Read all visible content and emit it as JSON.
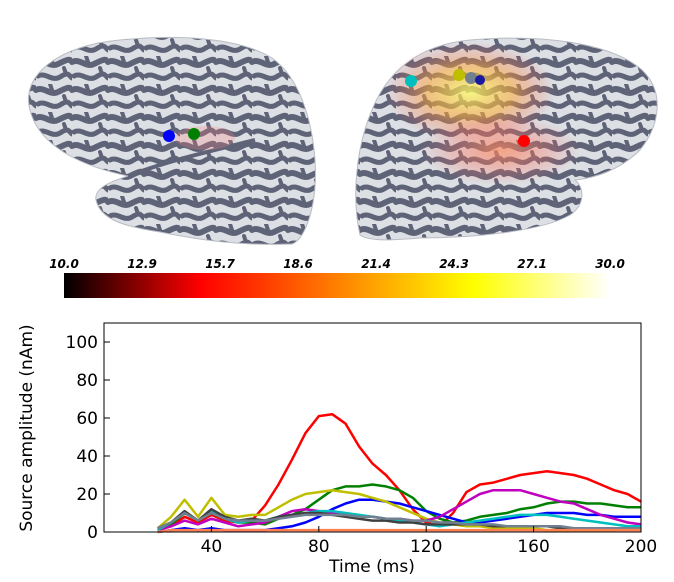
{
  "colors": {
    "cortex": "#5f6378",
    "cortex_light": "#dcdfe3",
    "series": [
      "#ff0000",
      "#008000",
      "#0000ff",
      "#bfbf00",
      "#bf00bf",
      "#00bfbf",
      "#404040",
      "#708090",
      "#ff7f50"
    ]
  },
  "brain_markers": {
    "left": [
      {
        "color": "#0000ff",
        "icon": "blue-sphere"
      },
      {
        "color": "#008000",
        "icon": "green-sphere"
      }
    ],
    "right": [
      {
        "color": "#00bfbf",
        "icon": "cyan-sphere"
      },
      {
        "color": "#bfbf00",
        "icon": "yellow-sphere"
      },
      {
        "color": "#708090",
        "icon": "gray-sphere"
      },
      {
        "color": "#1a1aa0",
        "icon": "navy-sphere"
      },
      {
        "color": "#ff0000",
        "icon": "red-sphere"
      }
    ]
  },
  "colorbar": {
    "ticks": [
      "10.0",
      "12.9",
      "15.7",
      "18.6",
      "21.4",
      "24.3",
      "27.1",
      "30.0"
    ],
    "min": 10.0,
    "max": 30.0,
    "gradient": [
      "#000000",
      "#ff0000",
      "#ff8000",
      "#ffff00",
      "#ffffff"
    ]
  },
  "chart_data": {
    "type": "line",
    "xlabel": "Time (ms)",
    "ylabel": "Source amplitude (nAm)",
    "xlim": [
      0,
      200
    ],
    "ylim": [
      0,
      110
    ],
    "xticks": [
      40,
      80,
      120,
      160,
      200
    ],
    "yticks": [
      0,
      20,
      40,
      60,
      80,
      100
    ],
    "grid": false,
    "series": [
      {
        "color": "#ff0000",
        "x": [
          20,
          25,
          30,
          35,
          40,
          45,
          50,
          55,
          60,
          65,
          70,
          75,
          80,
          85,
          90,
          95,
          100,
          105,
          110,
          115,
          120,
          125,
          130,
          135,
          140,
          145,
          150,
          155,
          160,
          165,
          170,
          175,
          180,
          185,
          190,
          195,
          200
        ],
        "y": [
          1,
          3,
          8,
          5,
          9,
          6,
          5,
          6,
          14,
          25,
          38,
          52,
          61,
          62,
          57,
          45,
          36,
          30,
          22,
          12,
          5,
          3,
          10,
          21,
          25,
          26,
          28,
          30,
          31,
          32,
          31,
          30,
          28,
          25,
          22,
          20,
          16
        ]
      },
      {
        "color": "#008000",
        "x": [
          20,
          25,
          30,
          35,
          40,
          45,
          50,
          55,
          60,
          65,
          70,
          75,
          80,
          85,
          90,
          95,
          100,
          105,
          110,
          115,
          120,
          125,
          130,
          135,
          140,
          145,
          150,
          155,
          160,
          165,
          170,
          175,
          180,
          185,
          190,
          195,
          200
        ],
        "y": [
          2,
          4,
          10,
          6,
          10,
          7,
          5,
          5,
          4,
          7,
          9,
          12,
          17,
          22,
          24,
          24,
          25,
          24,
          22,
          18,
          11,
          7,
          5,
          6,
          8,
          9,
          10,
          12,
          13,
          15,
          16,
          16,
          15,
          15,
          14,
          13,
          13
        ]
      },
      {
        "color": "#0000ff",
        "x": [
          20,
          25,
          30,
          35,
          40,
          45,
          50,
          55,
          60,
          65,
          70,
          75,
          80,
          85,
          90,
          95,
          100,
          105,
          110,
          115,
          120,
          125,
          130,
          135,
          140,
          145,
          150,
          155,
          160,
          165,
          170,
          175,
          180,
          185,
          190,
          195,
          200
        ],
        "y": [
          0,
          1,
          2,
          1,
          2,
          1,
          1,
          1,
          1,
          2,
          3,
          5,
          8,
          12,
          15,
          17,
          17,
          16,
          15,
          13,
          11,
          9,
          7,
          5,
          5,
          6,
          7,
          8,
          9,
          10,
          10,
          10,
          9,
          9,
          8,
          8,
          8
        ]
      },
      {
        "color": "#bfbf00",
        "x": [
          20,
          25,
          30,
          35,
          40,
          45,
          50,
          55,
          60,
          65,
          70,
          75,
          80,
          85,
          90,
          95,
          100,
          105,
          110,
          115,
          120,
          125,
          130,
          135,
          140,
          145,
          150,
          155,
          160,
          165,
          170,
          175,
          180,
          185,
          190,
          195,
          200
        ],
        "y": [
          2,
          8,
          17,
          8,
          18,
          9,
          8,
          9,
          9,
          13,
          17,
          20,
          21,
          22,
          21,
          20,
          18,
          16,
          13,
          10,
          7,
          5,
          4,
          3,
          3,
          2,
          2,
          2,
          2,
          1,
          1,
          1,
          1,
          1,
          1,
          2,
          3
        ]
      },
      {
        "color": "#bf00bf",
        "x": [
          20,
          25,
          30,
          35,
          40,
          45,
          50,
          55,
          60,
          65,
          70,
          75,
          80,
          85,
          90,
          95,
          100,
          105,
          110,
          115,
          120,
          125,
          130,
          135,
          140,
          145,
          150,
          155,
          160,
          165,
          170,
          175,
          180,
          185,
          190,
          195,
          200
        ],
        "y": [
          1,
          3,
          6,
          4,
          7,
          5,
          3,
          4,
          5,
          8,
          11,
          12,
          11,
          10,
          9,
          8,
          8,
          7,
          7,
          6,
          6,
          8,
          12,
          16,
          20,
          22,
          22,
          22,
          20,
          18,
          16,
          15,
          12,
          9,
          7,
          5,
          4
        ]
      },
      {
        "color": "#00bfbf",
        "x": [
          20,
          25,
          30,
          35,
          40,
          45,
          50,
          55,
          60,
          65,
          70,
          75,
          80,
          85,
          90,
          95,
          100,
          105,
          110,
          115,
          120,
          125,
          130,
          135,
          140,
          145,
          150,
          155,
          160,
          165,
          170,
          175,
          180,
          185,
          190,
          195,
          200
        ],
        "y": [
          1,
          5,
          10,
          6,
          11,
          7,
          5,
          6,
          6,
          8,
          9,
          10,
          11,
          11,
          10,
          9,
          8,
          7,
          6,
          5,
          4,
          3,
          4,
          5,
          6,
          7,
          8,
          9,
          9,
          9,
          8,
          7,
          6,
          5,
          4,
          3,
          3
        ]
      },
      {
        "color": "#404040",
        "x": [
          20,
          25,
          30,
          35,
          40,
          45,
          50,
          55,
          60,
          65,
          70,
          75,
          80,
          85,
          90,
          95,
          100,
          105,
          110,
          115,
          120,
          125,
          130,
          135,
          140,
          145,
          150,
          155,
          160,
          165,
          170,
          175,
          180,
          185,
          190,
          195,
          200
        ],
        "y": [
          2,
          5,
          11,
          6,
          12,
          8,
          6,
          7,
          6,
          8,
          9,
          10,
          10,
          9,
          8,
          7,
          6,
          6,
          5,
          5,
          4,
          4,
          4,
          4,
          4,
          3,
          3,
          3,
          3,
          3,
          2,
          2,
          2,
          2,
          2,
          2,
          2
        ]
      },
      {
        "color": "#708090",
        "x": [
          20,
          25,
          30,
          35,
          40,
          45,
          50,
          55,
          60,
          65,
          70,
          75,
          80,
          85,
          90,
          95,
          100,
          105,
          110,
          115,
          120,
          125,
          130,
          135,
          140,
          145,
          150,
          155,
          160,
          165,
          170,
          175,
          180,
          185,
          190,
          195,
          200
        ],
        "y": [
          2,
          5,
          10,
          6,
          10,
          7,
          6,
          6,
          6,
          7,
          8,
          9,
          9,
          9,
          9,
          8,
          8,
          7,
          7,
          6,
          6,
          5,
          5,
          4,
          4,
          4,
          3,
          3,
          3,
          3,
          3,
          2,
          2,
          2,
          2,
          2,
          2
        ]
      },
      {
        "color": "#ff7f50",
        "x": [
          20,
          25,
          30,
          35,
          40,
          45,
          50,
          55,
          60,
          65,
          70,
          75,
          80,
          85,
          90,
          95,
          100,
          105,
          110,
          115,
          120,
          125,
          130,
          135,
          140,
          145,
          150,
          155,
          160,
          165,
          170,
          175,
          180,
          185,
          190,
          195,
          200
        ],
        "y": [
          0,
          1,
          1,
          1,
          1,
          1,
          1,
          1,
          1,
          1,
          1,
          1,
          1,
          1,
          1,
          1,
          1,
          1,
          1,
          1,
          1,
          1,
          1,
          1,
          1,
          1,
          1,
          1,
          1,
          1,
          1,
          1,
          1,
          1,
          1,
          1,
          1
        ]
      }
    ]
  }
}
